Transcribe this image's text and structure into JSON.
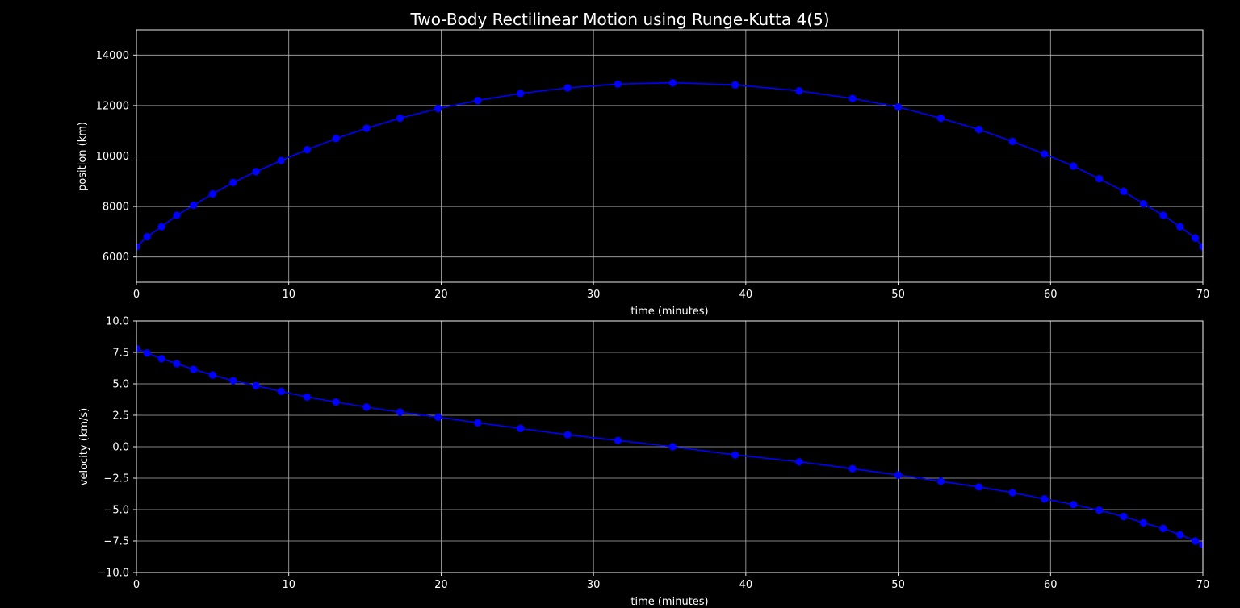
{
  "figure": {
    "title": "Two-Body Rectilinear Motion using Runge-Kutta 4(5)",
    "background": "#000000",
    "foreground": "#ffffff",
    "line_color": "#0000ff",
    "grid_color": "#b0b0b0"
  },
  "chart_data": [
    {
      "type": "line",
      "xlabel": "time (minutes)",
      "ylabel": "position (km)",
      "xlim": [
        0,
        70
      ],
      "ylim": [
        5000,
        15000
      ],
      "xticks": [
        0,
        10,
        20,
        30,
        40,
        50,
        60,
        70
      ],
      "yticks": [
        6000,
        8000,
        10000,
        12000,
        14000
      ],
      "grid": true,
      "marker": "circle",
      "series": [
        {
          "x": [
            0,
            0.7,
            1.65,
            2.65,
            3.75,
            5.0,
            6.35,
            7.85,
            9.5,
            11.2,
            13.1,
            15.1,
            17.3,
            19.8,
            22.4,
            25.2,
            28.3,
            31.6,
            35.2,
            39.3,
            43.5,
            47.0,
            50.0,
            52.8,
            55.3,
            57.5,
            59.6,
            61.5,
            63.2,
            64.8,
            66.1,
            67.4,
            68.5,
            69.5,
            70.0
          ],
          "y": [
            6400,
            6800,
            7200,
            7650,
            8050,
            8500,
            8950,
            9380,
            9820,
            10250,
            10690,
            11100,
            11500,
            11880,
            12200,
            12480,
            12700,
            12850,
            12900,
            12820,
            12580,
            12280,
            11940,
            11500,
            11050,
            10580,
            10080,
            9600,
            9100,
            8600,
            8110,
            7650,
            7200,
            6750,
            6400
          ]
        }
      ]
    },
    {
      "type": "line",
      "xlabel": "time (minutes)",
      "ylabel": "velocity (km/s)",
      "xlim": [
        0,
        70
      ],
      "ylim": [
        -10,
        10
      ],
      "xticks": [
        0,
        10,
        20,
        30,
        40,
        50,
        60,
        70
      ],
      "yticks": [
        -10.0,
        -7.5,
        -5.0,
        -2.5,
        0.0,
        2.5,
        5.0,
        7.5,
        10.0
      ],
      "ytick_labels": [
        "−10.0",
        "−7.5",
        "−5.0",
        "−2.5",
        "0.0",
        "2.5",
        "5.0",
        "7.5",
        "10.0"
      ],
      "grid": true,
      "marker": "circle",
      "series": [
        {
          "x": [
            0,
            0.7,
            1.65,
            2.65,
            3.75,
            5.0,
            6.35,
            7.85,
            9.5,
            11.2,
            13.1,
            15.1,
            17.3,
            19.8,
            22.4,
            25.2,
            28.3,
            31.6,
            35.2,
            39.3,
            43.5,
            47.0,
            50.0,
            52.8,
            55.3,
            57.5,
            59.6,
            61.5,
            63.2,
            64.8,
            66.1,
            67.4,
            68.5,
            69.5,
            70.0
          ],
          "y": [
            7.8,
            7.45,
            7.0,
            6.6,
            6.15,
            5.7,
            5.25,
            4.85,
            4.4,
            3.95,
            3.55,
            3.15,
            2.75,
            2.35,
            1.9,
            1.45,
            0.95,
            0.5,
            0.0,
            -0.65,
            -1.2,
            -1.75,
            -2.25,
            -2.75,
            -3.2,
            -3.65,
            -4.15,
            -4.6,
            -5.05,
            -5.55,
            -6.05,
            -6.5,
            -7.0,
            -7.5,
            -7.8
          ]
        }
      ]
    }
  ]
}
